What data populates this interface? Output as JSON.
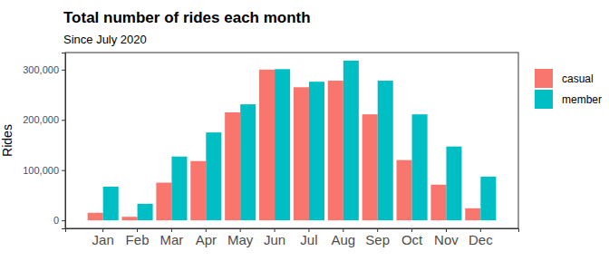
{
  "chart_data": {
    "type": "bar",
    "title": "Total number of rides each month",
    "subtitle": "Since July 2020",
    "y_label": "Rides",
    "categories": [
      "Jan",
      "Feb",
      "Mar",
      "Apr",
      "May",
      "Jun",
      "Jul",
      "Aug",
      "Sep",
      "Oct",
      "Nov",
      "Dec"
    ],
    "series": [
      {
        "name": "casual",
        "color": "#F8766D",
        "values": [
          15000,
          7000,
          75000,
          118000,
          215000,
          300000,
          265000,
          278000,
          211000,
          120000,
          71000,
          24000
        ]
      },
      {
        "name": "member",
        "color": "#00BFC4",
        "values": [
          67000,
          33000,
          127000,
          175000,
          231000,
          301000,
          276000,
          318000,
          278000,
          211000,
          147000,
          87000
        ]
      }
    ],
    "ylim": [
      -16000,
      334000
    ],
    "yticks": [
      0,
      {
        "value": 100000,
        "label": "100,000"
      },
      {
        "value": 200000,
        "label": "200,000"
      },
      {
        "value": 300000,
        "label": "300,000"
      }
    ],
    "legend": "right",
    "grid": false
  }
}
